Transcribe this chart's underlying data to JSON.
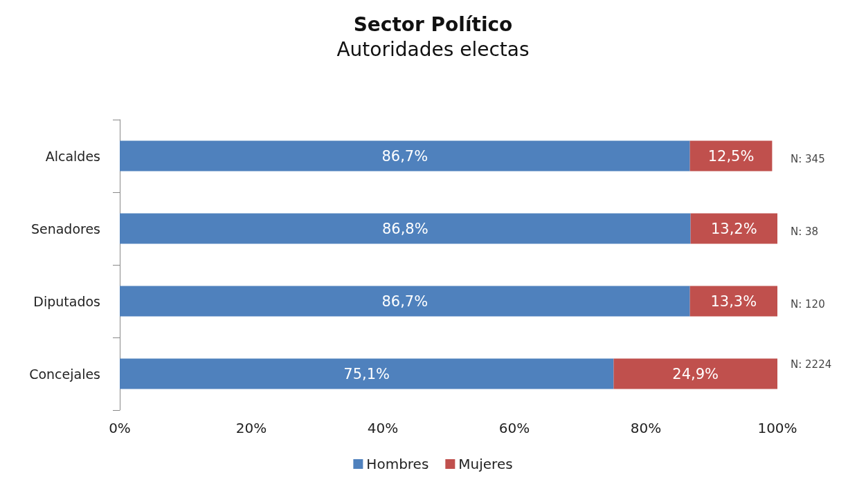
{
  "chart_data": {
    "type": "bar",
    "title": "Sector Político",
    "subtitle": "Autoridades electas",
    "orientation": "horizontal",
    "stacked": true,
    "categories": [
      "Alcaldes",
      "Senadores",
      "Diputados",
      "Concejales"
    ],
    "series": [
      {
        "name": "Hombres",
        "color": "#4f81bd",
        "values": [
          86.7,
          86.8,
          86.7,
          75.1
        ],
        "value_labels": [
          "86,7%",
          "86,8%",
          "86,7%",
          "75,1%"
        ]
      },
      {
        "name": "Mujeres",
        "color": "#c0504d",
        "values": [
          12.5,
          13.2,
          13.3,
          24.9
        ],
        "value_labels": [
          "12,5%",
          "13,2%",
          "13,3%",
          "24,9%"
        ]
      }
    ],
    "xlim": [
      0,
      100
    ],
    "xticks": [
      {
        "value": 0,
        "label": "0%"
      },
      {
        "value": 20,
        "label": "20%"
      },
      {
        "value": 40,
        "label": "40%"
      },
      {
        "value": 60,
        "label": "60%"
      },
      {
        "value": 80,
        "label": "80%"
      },
      {
        "value": 100,
        "label": "100%"
      }
    ],
    "annotations": [
      "N: 345",
      "N: 38",
      "N: 120",
      "N: 2224"
    ],
    "grid": false,
    "legend": "bottom"
  }
}
